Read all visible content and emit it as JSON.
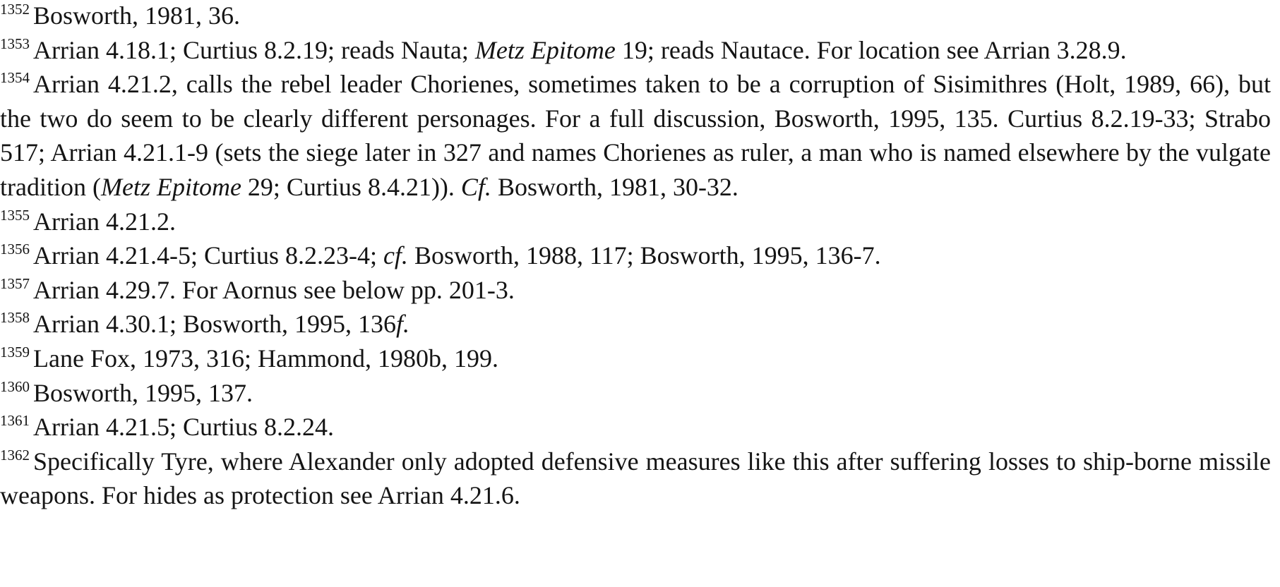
{
  "footnotes": [
    {
      "number": "1352",
      "segments": [
        {
          "text": "Bosworth, 1981, 36."
        }
      ]
    },
    {
      "number": "1353",
      "segments": [
        {
          "text": "Arrian 4.18.1; Curtius 8.2.19; reads Nauta; "
        },
        {
          "text": "Metz Epitome",
          "italic": true
        },
        {
          "text": " 19; reads Nautace. For location see Arrian 3.28.9."
        }
      ]
    },
    {
      "number": "1354",
      "segments": [
        {
          "text": "Arrian 4.21.2, calls the rebel leader Chorienes, sometimes taken to be a corruption of Sisimithres (Holt, 1989, 66), but the two do seem to be clearly different personages. For a full discussion, Bosworth, 1995, 135. Curtius 8.2.19-33; Strabo 517; Arrian 4.21.1-9 (sets the siege later in 327 and names Chorienes as ruler, a man who is named elsewhere by the vulgate tradition ("
        },
        {
          "text": "Metz Epitome",
          "italic": true
        },
        {
          "text": " 29; Curtius 8.4.21)). "
        },
        {
          "text": "Cf.",
          "italic": true
        },
        {
          "text": " Bosworth, 1981, 30-32."
        }
      ]
    },
    {
      "number": "1355",
      "segments": [
        {
          "text": "Arrian 4.21.2."
        }
      ]
    },
    {
      "number": "1356",
      "segments": [
        {
          "text": "Arrian 4.21.4-5; Curtius 8.2.23-4; "
        },
        {
          "text": "cf.",
          "italic": true
        },
        {
          "text": " Bosworth, 1988, 117; Bosworth, 1995, 136-7."
        }
      ]
    },
    {
      "number": "1357",
      "segments": [
        {
          "text": "Arrian 4.29.7. For Aornus see below pp. 201-3."
        }
      ]
    },
    {
      "number": "1358",
      "segments": [
        {
          "text": "Arrian 4.30.1; Bosworth, 1995, 136"
        },
        {
          "text": "f.",
          "italic": true
        }
      ]
    },
    {
      "number": "1359",
      "segments": [
        {
          "text": "Lane Fox, 1973, 316; Hammond, 1980b, 199."
        }
      ]
    },
    {
      "number": "1360",
      "segments": [
        {
          "text": "Bosworth, 1995, 137."
        }
      ]
    },
    {
      "number": "1361",
      "segments": [
        {
          "text": "Arrian 4.21.5; Curtius 8.2.24."
        }
      ]
    },
    {
      "number": "1362",
      "segments": [
        {
          "text": "Specifically Tyre, where Alexander only adopted defensive measures like this after suffering losses to ship-borne missile weapons. For hides as protection see Arrian 4.21.6."
        }
      ]
    }
  ]
}
